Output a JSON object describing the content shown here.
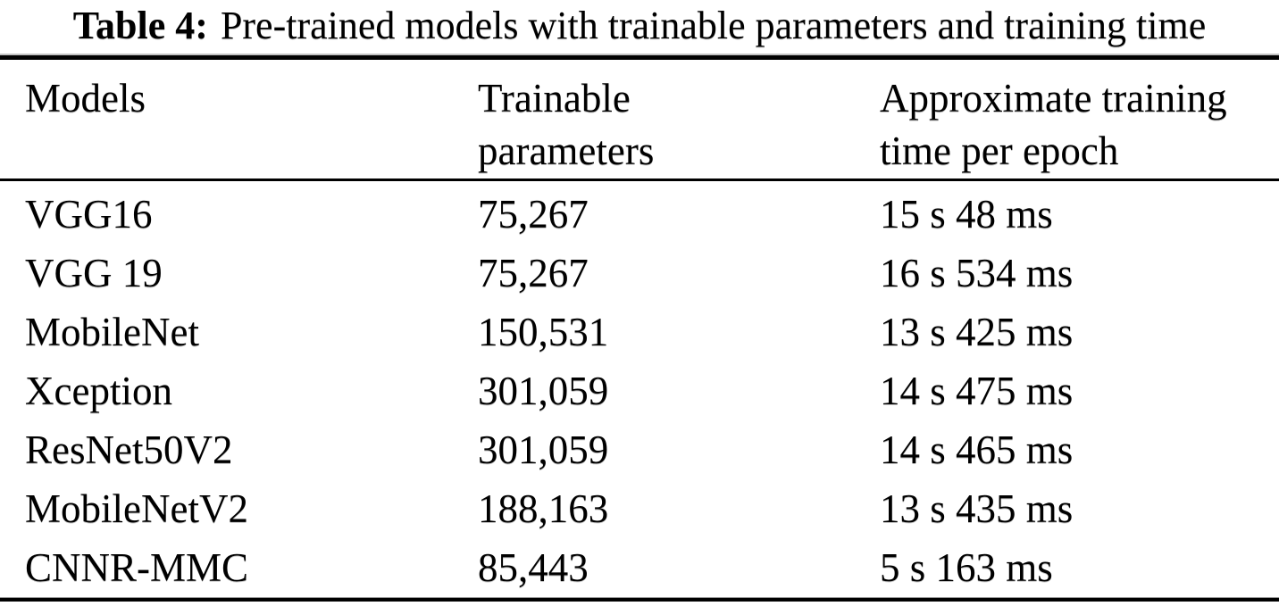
{
  "caption": {
    "label": "Table 4:",
    "text": "Pre-trained models with trainable parameters and training time"
  },
  "table": {
    "columns": [
      {
        "lines": [
          "Models"
        ]
      },
      {
        "lines": [
          "Trainable",
          "parameters"
        ]
      },
      {
        "lines": [
          "Approximate training",
          "time per epoch"
        ]
      }
    ],
    "rows": [
      {
        "model": "VGG16",
        "trainable_parameters": "75,267",
        "training_time": "15 s 48 ms"
      },
      {
        "model": "VGG 19",
        "trainable_parameters": "75,267",
        "training_time": "16 s 534 ms"
      },
      {
        "model": "MobileNet",
        "trainable_parameters": "150,531",
        "training_time": "13 s 425 ms"
      },
      {
        "model": "Xception",
        "trainable_parameters": "301,059",
        "training_time": "14 s 475 ms"
      },
      {
        "model": "ResNet50V2",
        "trainable_parameters": "301,059",
        "training_time": "14 s 465 ms"
      },
      {
        "model": "MobileNetV2",
        "trainable_parameters": "188,163",
        "training_time": "13 s 435 ms"
      },
      {
        "model": "CNNR-MMC",
        "trainable_parameters": "85,443",
        "training_time": "5 s 163 ms"
      }
    ]
  },
  "colors": {
    "text": "#000000",
    "background": "#ffffff",
    "rule": "#000000"
  },
  "chart_data": {
    "type": "table",
    "title": "Table 4: Pre-trained models with trainable parameters and training time",
    "columns": [
      "Models",
      "Trainable parameters",
      "Approximate training time per epoch"
    ],
    "rows": [
      [
        "VGG16",
        "75,267",
        "15 s 48 ms"
      ],
      [
        "VGG 19",
        "75,267",
        "16 s 534 ms"
      ],
      [
        "MobileNet",
        "150,531",
        "13 s 425 ms"
      ],
      [
        "Xception",
        "301,059",
        "14 s 475 ms"
      ],
      [
        "ResNet50V2",
        "301,059",
        "14 s 465 ms"
      ],
      [
        "MobileNetV2",
        "188,163",
        "13 s 435 ms"
      ],
      [
        "CNNR-MMC",
        "85,443",
        "5 s 163 ms"
      ]
    ]
  }
}
